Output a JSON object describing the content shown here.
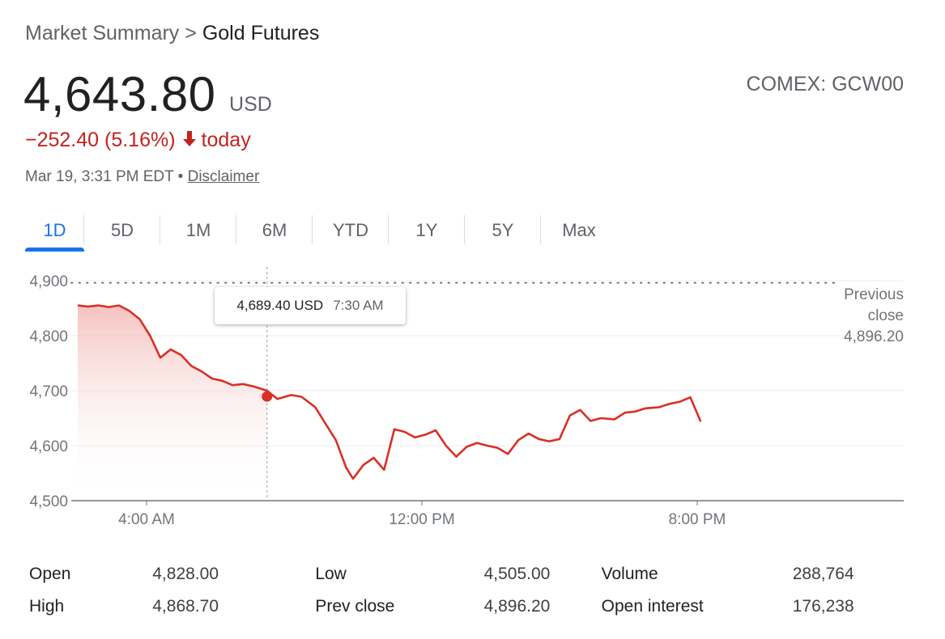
{
  "breadcrumb": {
    "parent": "Market Summary",
    "separator": ">",
    "current": "Gold Futures"
  },
  "quote": {
    "price": "4,643.80",
    "currency": "USD",
    "change": "−252.40 (5.16%)",
    "change_suffix": "today",
    "exchange": "COMEX:",
    "symbol": "GCW00",
    "timestamp": "Mar 19, 3:31 PM EDT •",
    "disclaimer": "Disclaimer"
  },
  "tabs": [
    {
      "label": "1D",
      "active": true
    },
    {
      "label": "5D"
    },
    {
      "label": "1M"
    },
    {
      "label": "6M"
    },
    {
      "label": "YTD"
    },
    {
      "label": "1Y"
    },
    {
      "label": "5Y"
    },
    {
      "label": "Max"
    }
  ],
  "tooltip": {
    "value": "4,689.40 USD",
    "time": "7:30 AM"
  },
  "prev_close_label": {
    "line1": "Previous",
    "line2": "close",
    "value": "4,896.20"
  },
  "colors": {
    "line": "#d93025",
    "accent": "#1a73e8",
    "negative": "#c5221f"
  },
  "chart_data": {
    "type": "line",
    "series": [
      {
        "x": [
          2.0,
          2.3,
          2.6,
          2.9,
          3.2,
          3.5,
          3.8,
          4.1,
          4.4,
          4.7,
          5.0,
          5.3,
          5.6,
          5.9,
          6.2,
          6.5,
          6.8,
          7.1,
          7.5,
          7.8,
          8.2,
          8.5,
          8.9,
          9.2,
          9.5,
          9.8,
          10.0,
          10.3,
          10.6,
          10.9,
          11.2,
          11.5,
          11.8,
          12.1,
          12.4,
          12.7,
          13.0,
          13.3,
          13.6,
          13.9,
          14.2,
          14.5,
          14.8,
          15.1,
          15.4,
          15.7,
          16.0,
          16.3,
          16.6,
          16.9,
          17.2,
          17.6,
          17.9,
          18.2,
          18.5,
          18.9,
          19.2,
          19.5,
          19.8,
          20.1
        ],
        "y": [
          4855,
          4853,
          4855,
          4852,
          4855,
          4845,
          4830,
          4800,
          4760,
          4775,
          4765,
          4745,
          4735,
          4722,
          4718,
          4710,
          4712,
          4708,
          4700,
          4685,
          4692,
          4689,
          4670,
          4640,
          4610,
          4560,
          4540,
          4565,
          4578,
          4556,
          4630,
          4625,
          4615,
          4620,
          4628,
          4600,
          4580,
          4598,
          4605,
          4600,
          4596,
          4585,
          4610,
          4622,
          4612,
          4608,
          4612,
          4655,
          4665,
          4645,
          4650,
          4648,
          4660,
          4662,
          4668,
          4670,
          4676,
          4680,
          4688,
          4643.8
        ]
      }
    ],
    "xlim": [
      2.0,
      26.0
    ],
    "x_ticks": [
      4,
      12,
      20
    ],
    "x_tick_labels": [
      "4:00 AM",
      "12:00 PM",
      "8:00 PM"
    ],
    "ylim": [
      4500,
      4900
    ],
    "y_ticks": [
      4500,
      4600,
      4700,
      4800,
      4900
    ],
    "y_tick_labels": [
      "4,500",
      "4,600",
      "4,700",
      "4,800",
      "4,900"
    ],
    "previous_close": 4896.2,
    "highlight": {
      "x": 7.5,
      "y": 4689.4
    },
    "grid": true
  },
  "stats": [
    [
      {
        "label": "Open",
        "value": "4,828.00"
      },
      {
        "label": "Low",
        "value": "4,505.00"
      },
      {
        "label": "Volume",
        "value": "288,764"
      }
    ],
    [
      {
        "label": "High",
        "value": "4,868.70"
      },
      {
        "label": "Prev close",
        "value": "4,896.20"
      },
      {
        "label": "Open interest",
        "value": "176,238"
      }
    ]
  ]
}
